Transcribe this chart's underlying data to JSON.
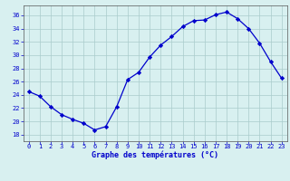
{
  "hours": [
    0,
    1,
    2,
    3,
    4,
    5,
    6,
    7,
    8,
    9,
    10,
    11,
    12,
    13,
    14,
    15,
    16,
    17,
    18,
    19,
    20,
    21,
    22,
    23
  ],
  "temperatures": [
    24.5,
    23.8,
    22.2,
    21.0,
    20.3,
    19.7,
    18.7,
    19.2,
    22.2,
    26.3,
    27.4,
    29.7,
    31.5,
    32.8,
    34.3,
    35.2,
    35.3,
    36.1,
    36.5,
    35.5,
    34.0,
    31.8,
    29.0,
    26.5
  ],
  "line_color": "#0000cc",
  "marker": "D",
  "marker_size": 2.2,
  "bg_color": "#d8f0f0",
  "grid_color": "#aacccc",
  "xlabel": "Graphe des températures (°C)",
  "xlabel_color": "#0000cc",
  "tick_color": "#0000cc",
  "axis_color": "#555555",
  "ylim": [
    17,
    37.5
  ],
  "yticks": [
    18,
    20,
    22,
    24,
    26,
    28,
    30,
    32,
    34,
    36
  ],
  "xlim": [
    -0.5,
    23.5
  ],
  "xticks": [
    0,
    1,
    2,
    3,
    4,
    5,
    6,
    7,
    8,
    9,
    10,
    11,
    12,
    13,
    14,
    15,
    16,
    17,
    18,
    19,
    20,
    21,
    22,
    23
  ],
  "tick_fontsize": 5.0,
  "xlabel_fontsize": 6.0
}
